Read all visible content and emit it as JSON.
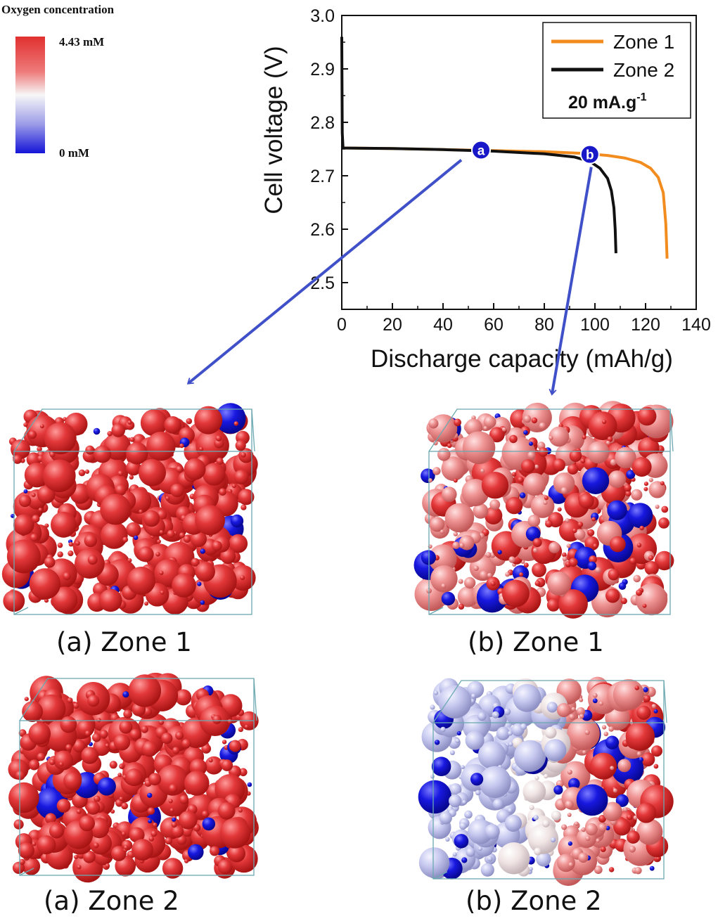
{
  "colorbar": {
    "title": "Oxygen concentration",
    "max_label": "4.43 mM",
    "min_label": "0 mM",
    "max_color": "#e0302f",
    "mid_color": "#f7f7f7",
    "min_color": "#1414d8"
  },
  "chart_data": {
    "type": "line",
    "xlabel": "Discharge capacity (mAh/g)",
    "ylabel": "Cell voltage (V)",
    "xlim": [
      0,
      140
    ],
    "ylim": [
      2.45,
      3.0
    ],
    "x_ticks": [
      "0",
      "20",
      "40",
      "60",
      "80",
      "100",
      "120",
      "140"
    ],
    "y_ticks": [
      "2.5",
      "2.6",
      "2.7",
      "2.8",
      "2.9",
      "3.0"
    ],
    "legend_position": "top-right",
    "legend_note": "20 mA.g-1",
    "series": [
      {
        "name": "Zone 1",
        "color": "#f28c1e",
        "x": [
          0,
          20,
          40,
          60,
          80,
          95,
          105,
          112,
          118,
          122,
          125,
          127,
          128,
          128.5
        ],
        "y": [
          2.752,
          2.751,
          2.749,
          2.747,
          2.745,
          2.742,
          2.738,
          2.733,
          2.725,
          2.714,
          2.697,
          2.668,
          2.61,
          2.545
        ]
      },
      {
        "name": "Zone 2",
        "color": "#111111",
        "x": [
          0,
          0.2,
          0.5,
          20,
          40,
          60,
          80,
          92,
          98,
          102,
          105,
          106.5,
          107.5,
          108,
          108.3
        ],
        "y": [
          2.96,
          2.78,
          2.752,
          2.751,
          2.749,
          2.746,
          2.741,
          2.735,
          2.727,
          2.714,
          2.695,
          2.672,
          2.64,
          2.6,
          2.555
        ]
      }
    ],
    "markers": [
      {
        "label": "a",
        "x": 55,
        "y": 2.748
      },
      {
        "label": "b",
        "x": 98,
        "y": 2.74
      }
    ]
  },
  "panels": [
    {
      "label": "(a) Zone 1",
      "scheme": "red"
    },
    {
      "label": "(b) Zone 1",
      "scheme": "mixed"
    },
    {
      "label": "(a) Zone 2",
      "scheme": "red"
    },
    {
      "label": "(b) Zone 2",
      "scheme": "gradient"
    }
  ]
}
